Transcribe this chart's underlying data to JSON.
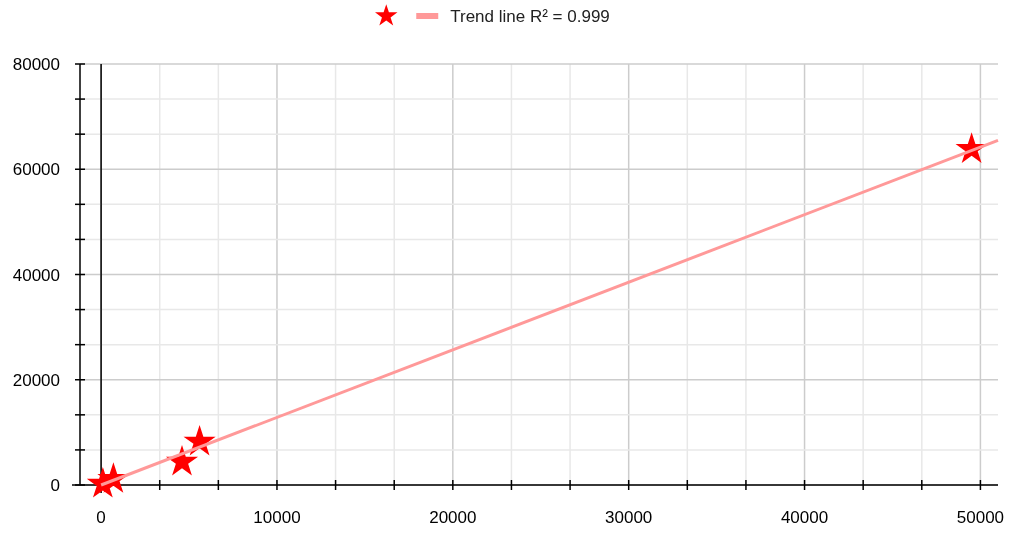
{
  "chart_data": {
    "type": "scatter",
    "legend": "top",
    "grid": true,
    "marker": "star",
    "xlim": [
      -1200,
      51000
    ],
    "ylim": [
      0,
      80000
    ],
    "xticks": [
      0,
      {
        "value": 3333,
        "label": null
      },
      {
        "value": 6667,
        "label": null
      },
      10000,
      {
        "value": 13333,
        "label": null
      },
      {
        "value": 16667,
        "label": null
      },
      20000,
      {
        "value": 23333,
        "label": null
      },
      {
        "value": 26667,
        "label": null
      },
      30000,
      {
        "value": 33333,
        "label": null
      },
      {
        "value": 36667,
        "label": null
      },
      40000,
      {
        "value": 43333,
        "label": null
      },
      {
        "value": 46667,
        "label": null
      },
      50000
    ],
    "yticks": [
      0,
      {
        "value": 6667,
        "label": null
      },
      {
        "value": 13333,
        "label": null
      },
      20000,
      {
        "value": 26667,
        "label": null
      },
      {
        "value": 33333,
        "label": null
      },
      40000,
      {
        "value": 46667,
        "label": null
      },
      {
        "value": 53333,
        "label": null
      },
      60000,
      {
        "value": 66667,
        "label": null
      },
      {
        "value": 73333,
        "label": null
      },
      80000
    ],
    "ref_lines": [
      {
        "axis": "x",
        "value": 0,
        "color": "#000000"
      }
    ],
    "series": [
      {
        "color": "#ff0000",
        "x": [
          100,
          700,
          4600,
          5600,
          49500
        ],
        "values": [
          200,
          1100,
          4400,
          8200,
          63800
        ]
      },
      {
        "type": "line",
        "name": "Trend line R² = 0.999",
        "color": "#ff9999",
        "marker": "none",
        "line_style": "solid",
        "x": [
          0,
          51000
        ],
        "values": [
          0,
          65500
        ]
      }
    ]
  }
}
